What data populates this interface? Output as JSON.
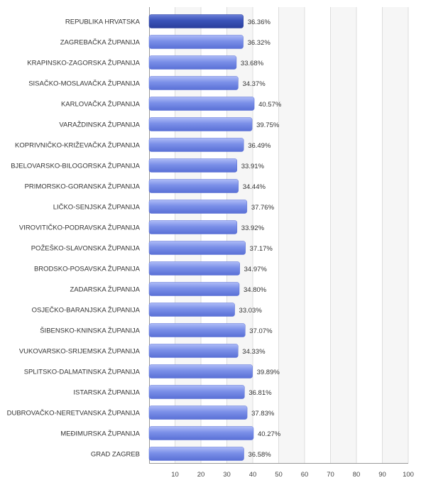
{
  "chart_data": {
    "type": "bar",
    "orientation": "horizontal",
    "categories": [
      "REPUBLIKA HRVATSKA",
      "ZAGREBAČKA ŽUPANIJA",
      "KRAPINSKO-ZAGORSKA ŽUPANIJA",
      "SISAČKO-MOSLAVAČKA ŽUPANIJA",
      "KARLOVAČKA ŽUPANIJA",
      "VARAŽDINSKA ŽUPANIJA",
      "KOPRIVNIČKO-KRIŽEVAČKA ŽUPANIJA",
      "BJELOVARSKO-BILOGORSKA ŽUPANIJA",
      "PRIMORSKO-GORANSKA ŽUPANIJA",
      "LIČKO-SENJSKA ŽUPANIJA",
      "VIROVITIČKO-PODRAVSKA ŽUPANIJA",
      "POŽEŠKO-SLAVONSKA ŽUPANIJA",
      "BRODSKO-POSAVSKA ŽUPANIJA",
      "ZADARSKA ŽUPANIJA",
      "OSJEČKO-BARANJSKA ŽUPANIJA",
      "ŠIBENSKO-KNINSKA ŽUPANIJA",
      "VUKOVARSKO-SRIJEMSKA ŽUPANIJA",
      "SPLITSKO-DALMATINSKA ŽUPANIJA",
      "ISTARSKA ŽUPANIJA",
      "DUBROVAČKO-NERETVANSKA ŽUPANIJA",
      "MEĐIMURSKA ŽUPANIJA",
      "GRAD ZAGREB"
    ],
    "values": [
      36.36,
      36.32,
      33.68,
      34.37,
      40.57,
      39.75,
      36.49,
      33.91,
      34.44,
      37.76,
      33.92,
      37.17,
      34.97,
      34.8,
      33.03,
      37.07,
      34.33,
      39.89,
      36.81,
      37.83,
      40.27,
      36.58
    ],
    "value_labels": [
      "36.36%",
      "36.32%",
      "33.68%",
      "34.37%",
      "40.57%",
      "39.75%",
      "36.49%",
      "33.91%",
      "34.44%",
      "37.76%",
      "33.92%",
      "37.17%",
      "34.97%",
      "34.80%",
      "33.03%",
      "37.07%",
      "34.33%",
      "39.89%",
      "36.81%",
      "37.83%",
      "40.27%",
      "36.58%"
    ],
    "highlight_index": 0,
    "xlim": [
      0,
      100
    ],
    "x_ticks": [
      10,
      20,
      30,
      40,
      50,
      60,
      70,
      80,
      90,
      100
    ],
    "x_tick_labels": [
      "10",
      "20",
      "30",
      "40",
      "50",
      "60",
      "70",
      "80",
      "90",
      "100"
    ],
    "grid": "vertical, alternating bands",
    "title": "",
    "xlabel": "",
    "ylabel": ""
  },
  "colors": {
    "bar_fill": "#7a8fe8",
    "bar_light": "#aebcf7",
    "bar_dark": "#5a70d6",
    "highlight_fill": "#3a52b8",
    "highlight_light": "#6b80d8",
    "highlight_dark": "#2a3f9c",
    "band_fill": "#f6f6f6",
    "grid_line": "#dddddd",
    "axis_line": "#999999",
    "text": "#333333"
  }
}
